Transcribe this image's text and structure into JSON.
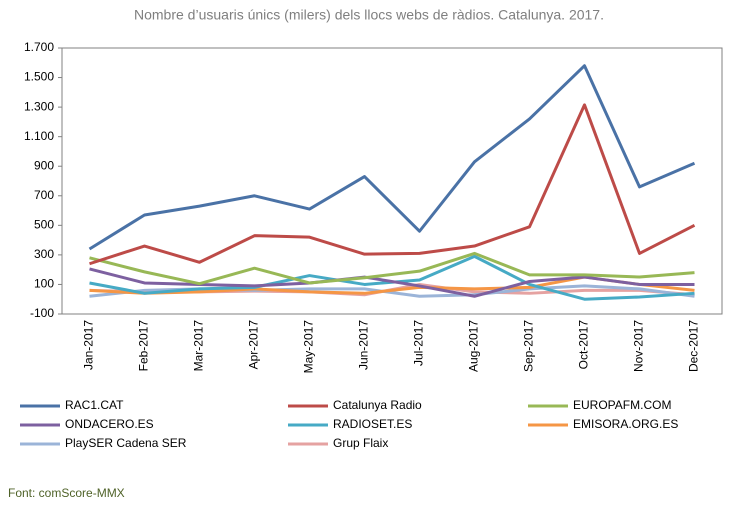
{
  "chart_data": {
    "type": "line",
    "title": "Nombre d’usuaris únics (milers) dels llocs webs de ràdios. Catalunya. 2017.",
    "source": "Font: comScore-MMX",
    "categories": [
      "Jan-2017",
      "Feb-2017",
      "Mar-2017",
      "Apr-2017",
      "May-2017",
      "Jun-2017",
      "Jul-2017",
      "Aug-2017",
      "Sep-2017",
      "Oct-2017",
      "Nov-2017",
      "Dec-2017"
    ],
    "ylim": [
      -100,
      1700
    ],
    "yticks": [
      -100,
      100,
      300,
      500,
      700,
      900,
      {
        "value": 1100,
        "label": "1.100"
      },
      {
        "value": 1300,
        "label": "1.300"
      },
      {
        "value": 1500,
        "label": "1.500"
      },
      {
        "value": 1700,
        "label": "1.700"
      }
    ],
    "grid": false,
    "series": [
      {
        "name": "RAC1.CAT",
        "color": "#4a72a6",
        "values": [
          340,
          570,
          630,
          700,
          610,
          830,
          460,
          930,
          1220,
          1580,
          760,
          920
        ]
      },
      {
        "name": "Catalunya Radio",
        "color": "#bd4b48",
        "values": [
          240,
          360,
          250,
          430,
          420,
          305,
          310,
          360,
          490,
          1315,
          310,
          500
        ]
      },
      {
        "name": "EUROPAFM.COM",
        "color": "#98b856",
        "values": [
          280,
          185,
          105,
          210,
          110,
          145,
          190,
          310,
          165,
          165,
          150,
          180
        ]
      },
      {
        "name": "ONDACERO.ES",
        "color": "#7d60a0",
        "values": [
          205,
          110,
          100,
          90,
          110,
          150,
          90,
          20,
          120,
          150,
          100,
          100
        ]
      },
      {
        "name": "RADIOSET.ES",
        "color": "#46aac5",
        "values": [
          110,
          40,
          70,
          80,
          160,
          100,
          130,
          290,
          100,
          0,
          15,
          40
        ]
      },
      {
        "name": "EMISORA.ORG.ES",
        "color": "#f59645",
        "values": [
          60,
          40,
          50,
          70,
          50,
          40,
          80,
          70,
          80,
          150,
          100,
          60
        ]
      },
      {
        "name": "PlaySER Cadena SER",
        "color": "#9bb4d8",
        "values": [
          20,
          60,
          70,
          60,
          70,
          70,
          20,
          30,
          70,
          90,
          70,
          20
        ]
      },
      {
        "name": "Grup Flaix",
        "color": "#e5a2a1",
        "values": [
          60,
          50,
          50,
          55,
          50,
          30,
          100,
          50,
          40,
          60,
          60,
          30
        ]
      }
    ]
  }
}
